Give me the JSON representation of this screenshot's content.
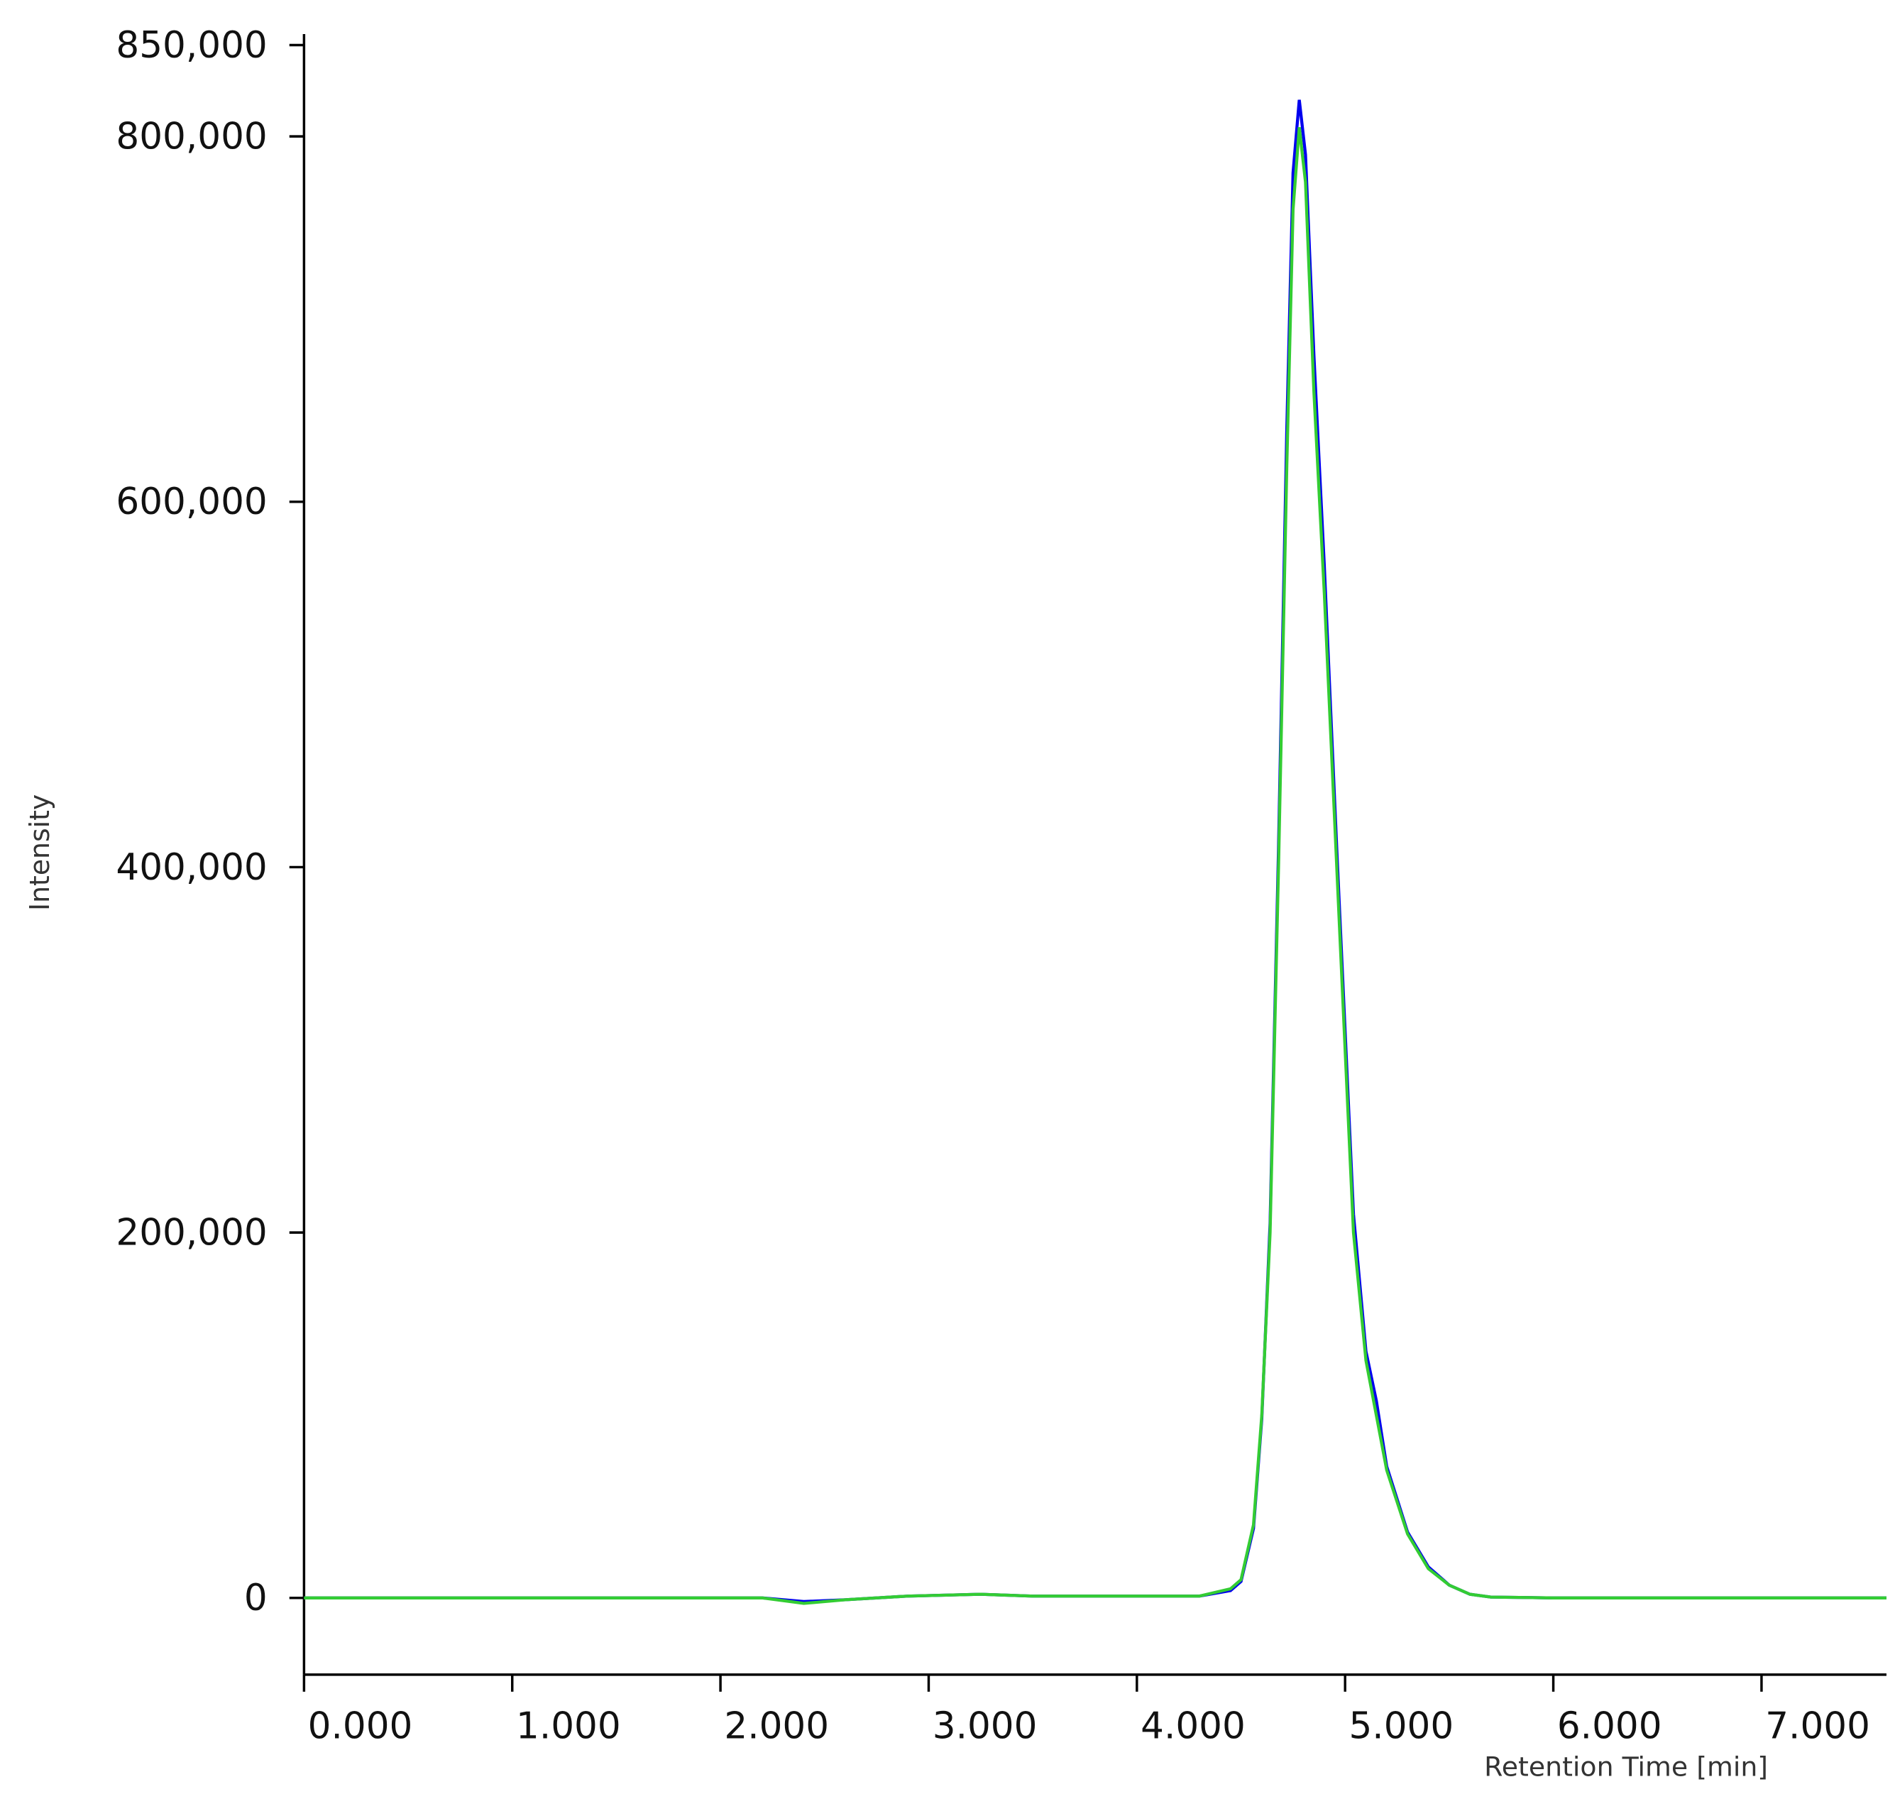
{
  "chart_data": {
    "type": "line",
    "ylabel": "Intensity",
    "xlabel": "Retention Time [min]",
    "x": [
      0,
      2.2,
      2.4,
      2.6,
      2.9,
      3.25,
      3.5,
      4.0,
      4.3,
      4.45,
      4.5,
      4.56,
      4.6,
      4.64,
      4.68,
      4.72,
      4.75,
      4.78,
      4.81,
      4.85,
      4.9,
      4.96,
      5.04,
      5.1,
      5.15,
      5.2,
      5.3,
      5.4,
      5.5,
      5.6,
      5.7,
      6.0,
      7.6
    ],
    "series": [
      {
        "color": "#0000ee",
        "values": [
          0,
          0,
          -2000,
          -1000,
          1000,
          2000,
          1000,
          1000,
          1000,
          4000,
          9000,
          38000,
          98000,
          205000,
          410000,
          640000,
          780000,
          820000,
          790000,
          680000,
          565000,
          410000,
          210000,
          135000,
          108000,
          72000,
          36000,
          17000,
          7000,
          2000,
          500,
          0,
          0
        ]
      },
      {
        "color": "#33cc33",
        "values": [
          0,
          0,
          -3000,
          -1000,
          1000,
          2000,
          1000,
          1000,
          1000,
          5000,
          10000,
          40000,
          100000,
          200000,
          400000,
          620000,
          760000,
          805000,
          775000,
          660000,
          550000,
          400000,
          200000,
          130000,
          100000,
          70000,
          35000,
          16000,
          7000,
          2000,
          500,
          0,
          0
        ]
      }
    ],
    "xlim": [
      0,
      7.6
    ],
    "ylim": [
      -42000,
      856000
    ],
    "xticks": [
      {
        "value": 0,
        "label": "0.000"
      },
      {
        "value": 1,
        "label": "1.000"
      },
      {
        "value": 2,
        "label": "2.000"
      },
      {
        "value": 3,
        "label": "3.000"
      },
      {
        "value": 4,
        "label": "4.000"
      },
      {
        "value": 5,
        "label": "5.000"
      },
      {
        "value": 6,
        "label": "6.000"
      },
      {
        "value": 7,
        "label": "7.000"
      }
    ],
    "yticks": [
      0,
      {
        "value": 200000,
        "label": "200,000"
      },
      {
        "value": 400000,
        "label": "400,000"
      },
      {
        "value": 600000,
        "label": "600,000"
      },
      {
        "value": 800000,
        "label": "800,000"
      },
      {
        "value": 850000,
        "label": "850,000"
      }
    ],
    "grid": false
  }
}
